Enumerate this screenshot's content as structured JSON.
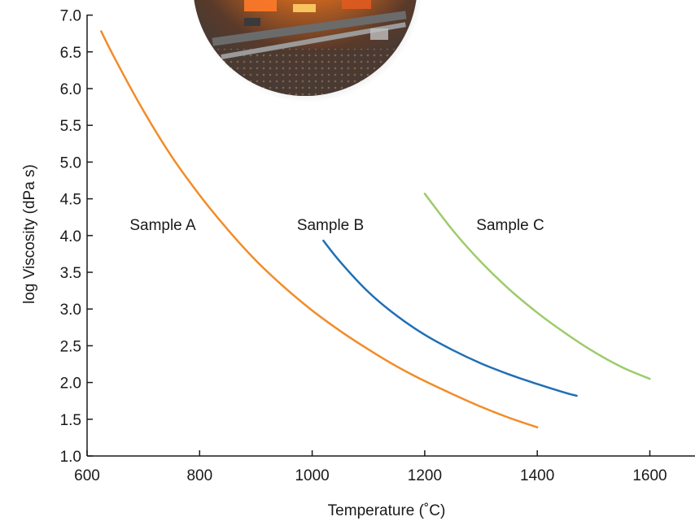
{
  "chart_data": {
    "type": "line",
    "title": "",
    "xlabel": "Temperature (˚C)",
    "ylabel": "log Viscosity (dPa s)",
    "xlim": [
      600,
      1700
    ],
    "ylim": [
      1.0,
      7.0
    ],
    "xticks": [
      600,
      800,
      1000,
      1200,
      1400,
      1600
    ],
    "yticks": [
      1.0,
      1.5,
      2.0,
      2.5,
      3.0,
      3.5,
      4.0,
      4.5,
      5.0,
      5.5,
      6.0,
      6.5,
      7.0
    ],
    "grid": false,
    "legend": "none",
    "series": [
      {
        "name": "Sample A",
        "color": "#F28C28",
        "x": [
          625,
          650,
          700,
          750,
          800,
          850,
          900,
          950,
          1000,
          1050,
          1100,
          1150,
          1200,
          1250,
          1300,
          1350,
          1400
        ],
        "y": [
          6.78,
          6.4,
          5.7,
          5.08,
          4.55,
          4.08,
          3.66,
          3.3,
          2.98,
          2.7,
          2.45,
          2.22,
          2.02,
          1.84,
          1.67,
          1.52,
          1.39
        ]
      },
      {
        "name": "Sample B",
        "color": "#1F6FB5",
        "x": [
          1020,
          1050,
          1100,
          1150,
          1200,
          1250,
          1300,
          1350,
          1400,
          1450,
          1470
        ],
        "y": [
          3.93,
          3.64,
          3.23,
          2.91,
          2.65,
          2.44,
          2.26,
          2.11,
          1.98,
          1.86,
          1.82
        ]
      },
      {
        "name": "Sample C",
        "color": "#9DCB6B",
        "x": [
          1200,
          1250,
          1300,
          1350,
          1400,
          1450,
          1500,
          1550,
          1600
        ],
        "y": [
          4.57,
          4.07,
          3.64,
          3.27,
          2.95,
          2.67,
          2.42,
          2.21,
          2.05
        ]
      }
    ]
  }
}
